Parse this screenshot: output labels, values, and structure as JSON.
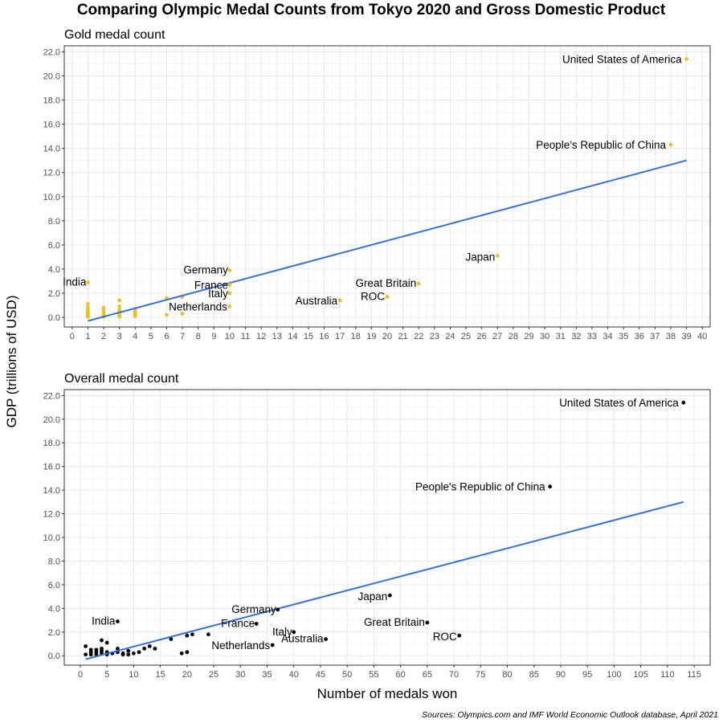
{
  "title": "Comparing Olympic Medal Counts from Tokyo 2020 and Gross Domestic Product",
  "ylabel": "GDP (trillions of USD)",
  "source": "Sources: Olympics.com and IMF World Economic Outlook database, April 2021",
  "colors": {
    "gold_points": "#e6c02e",
    "overall_points": "#000000",
    "trend_line": "#3a6fd8"
  },
  "chart_data": [
    {
      "type": "scatter",
      "title": "Gold medal count",
      "xlabel": "",
      "ylabel": "GDP (trillions of USD)",
      "xlim": [
        -0.5,
        40.5
      ],
      "ylim": [
        -0.8,
        22.5
      ],
      "xticks": [
        0,
        1,
        2,
        3,
        4,
        5,
        6,
        7,
        8,
        9,
        10,
        11,
        12,
        13,
        14,
        15,
        16,
        17,
        18,
        19,
        20,
        21,
        22,
        23,
        24,
        25,
        26,
        27,
        28,
        29,
        30,
        31,
        32,
        33,
        34,
        35,
        36,
        37,
        38,
        39,
        40
      ],
      "yticks": [
        0,
        2,
        4,
        6,
        8,
        10,
        12,
        14,
        16,
        18,
        20,
        22
      ],
      "ytick_labels": [
        "0.0",
        "2.0",
        "4.0",
        "6.0",
        "8.0",
        "10.0",
        "12.0",
        "14.0",
        "16.0",
        "18.0",
        "20.0",
        "22.0"
      ],
      "grid": true,
      "trend_line": {
        "x": [
          1,
          39
        ],
        "y": [
          -0.3,
          13.0
        ]
      },
      "labeled_points": [
        {
          "label": "United States of America",
          "x": 39,
          "y": 21.4
        },
        {
          "label": "People's Republic of China",
          "x": 38,
          "y": 14.3
        },
        {
          "label": "Japan",
          "x": 27,
          "y": 5.1
        },
        {
          "label": "Germany",
          "x": 10,
          "y": 3.9
        },
        {
          "label": "Great Britain",
          "x": 22,
          "y": 2.8
        },
        {
          "label": "India",
          "x": 1,
          "y": 2.9
        },
        {
          "label": "France",
          "x": 10,
          "y": 2.7
        },
        {
          "label": "Italy",
          "x": 10,
          "y": 2.0
        },
        {
          "label": "ROC",
          "x": 20,
          "y": 1.7
        },
        {
          "label": "Australia",
          "x": 17,
          "y": 1.4
        },
        {
          "label": "Netherlands",
          "x": 10,
          "y": 0.9
        }
      ],
      "other_points": [
        [
          1,
          1.1
        ],
        [
          1,
          0.8
        ],
        [
          1,
          0.6
        ],
        [
          1,
          0.5
        ],
        [
          1,
          0.4
        ],
        [
          1,
          0.3
        ],
        [
          1,
          0.2
        ],
        [
          1,
          0.1
        ],
        [
          1,
          0.05
        ],
        [
          2,
          0.8
        ],
        [
          2,
          0.6
        ],
        [
          2,
          0.5
        ],
        [
          2,
          0.4
        ],
        [
          2,
          0.2
        ],
        [
          2,
          0.1
        ],
        [
          2,
          0.05
        ],
        [
          3,
          1.4
        ],
        [
          3,
          0.9
        ],
        [
          3,
          0.6
        ],
        [
          3,
          0.4
        ],
        [
          3,
          0.2
        ],
        [
          3,
          0.05
        ],
        [
          4,
          0.7
        ],
        [
          4,
          0.5
        ],
        [
          4,
          0.4
        ],
        [
          4,
          0.3
        ],
        [
          4,
          0.2
        ],
        [
          4,
          0.1
        ],
        [
          6,
          1.6
        ],
        [
          6,
          0.2
        ],
        [
          7,
          1.7
        ],
        [
          7,
          0.3
        ]
      ]
    },
    {
      "type": "scatter",
      "title": "Overall medal count",
      "xlabel": "Number of medals won",
      "ylabel": "GDP (trillions of USD)",
      "xlim": [
        -3,
        118
      ],
      "ylim": [
        -0.8,
        22.5
      ],
      "xticks": [
        0,
        5,
        10,
        15,
        20,
        25,
        30,
        35,
        40,
        45,
        50,
        55,
        60,
        65,
        70,
        75,
        80,
        85,
        90,
        95,
        100,
        105,
        110,
        115
      ],
      "yticks": [
        0,
        2,
        4,
        6,
        8,
        10,
        12,
        14,
        16,
        18,
        20,
        22
      ],
      "ytick_labels": [
        "0.0",
        "2.0",
        "4.0",
        "6.0",
        "8.0",
        "10.0",
        "12.0",
        "14.0",
        "16.0",
        "18.0",
        "20.0",
        "22.0"
      ],
      "grid": true,
      "trend_line": {
        "x": [
          1,
          113
        ],
        "y": [
          -0.3,
          13.0
        ]
      },
      "labeled_points": [
        {
          "label": "United States of America",
          "x": 113,
          "y": 21.4
        },
        {
          "label": "People's Republic of China",
          "x": 88,
          "y": 14.3
        },
        {
          "label": "Japan",
          "x": 58,
          "y": 5.1
        },
        {
          "label": "Germany",
          "x": 37,
          "y": 3.9
        },
        {
          "label": "India",
          "x": 7,
          "y": 2.9
        },
        {
          "label": "Great Britain",
          "x": 65,
          "y": 2.8
        },
        {
          "label": "France",
          "x": 33,
          "y": 2.7
        },
        {
          "label": "Italy",
          "x": 40,
          "y": 2.0
        },
        {
          "label": "ROC",
          "x": 71,
          "y": 1.7
        },
        {
          "label": "Australia",
          "x": 46,
          "y": 1.4
        },
        {
          "label": "Netherlands",
          "x": 36,
          "y": 0.9
        }
      ],
      "other_points": [
        [
          1,
          0.8
        ],
        [
          1,
          0.1
        ],
        [
          2,
          0.5
        ],
        [
          2,
          0.3
        ],
        [
          2,
          0.1
        ],
        [
          3,
          0.5
        ],
        [
          3,
          0.3
        ],
        [
          3,
          0.1
        ],
        [
          4,
          1.3
        ],
        [
          4,
          0.6
        ],
        [
          4,
          0.4
        ],
        [
          4,
          0.2
        ],
        [
          5,
          1.1
        ],
        [
          5,
          0.3
        ],
        [
          5,
          0.1
        ],
        [
          6,
          0.2
        ],
        [
          7,
          0.6
        ],
        [
          7,
          0.3
        ],
        [
          8,
          0.2
        ],
        [
          8,
          0.1
        ],
        [
          9,
          0.4
        ],
        [
          9,
          0.1
        ],
        [
          10,
          0.2
        ],
        [
          11,
          0.3
        ],
        [
          12,
          0.6
        ],
        [
          13,
          0.8
        ],
        [
          14,
          0.6
        ],
        [
          17,
          1.4
        ],
        [
          19,
          0.2
        ],
        [
          20,
          1.7
        ],
        [
          20,
          0.3
        ],
        [
          21,
          1.8
        ],
        [
          24,
          1.8
        ]
      ]
    }
  ]
}
